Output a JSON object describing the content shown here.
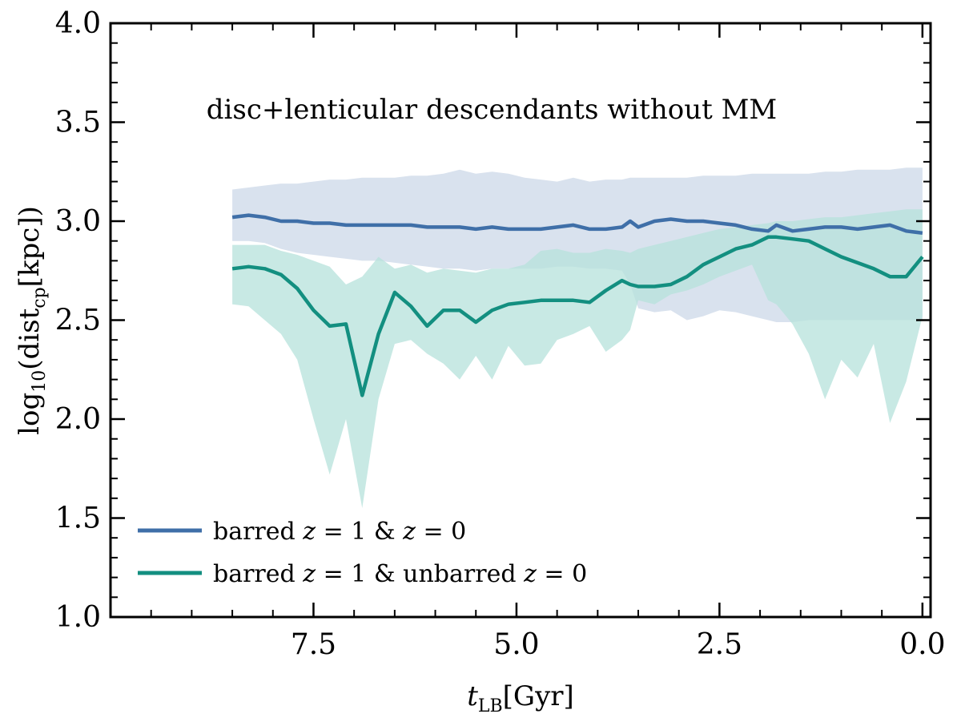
{
  "chart_data": {
    "type": "line",
    "title": "",
    "annotation": "disc+lenticular descendants without MM",
    "xlabel": "t_LB[Gyr]",
    "ylabel": "log10(dist_cp[kpc])",
    "xlim": [
      10.0,
      -0.1
    ],
    "ylim": [
      1.0,
      4.0
    ],
    "xticks": [
      7.5,
      5.0,
      2.5,
      0.0
    ],
    "xtick_labels": [
      "7.5",
      "5.0",
      "2.5",
      "0.0"
    ],
    "yticks": [
      1.0,
      1.5,
      2.0,
      2.5,
      3.0,
      3.5,
      4.0
    ],
    "ytick_labels": [
      "1.0",
      "1.5",
      "2.0",
      "2.5",
      "3.0",
      "3.5",
      "4.0"
    ],
    "grid": false,
    "legend_position": "lower-left",
    "series": [
      {
        "name": "barred z = 1 & z = 0",
        "legend_label": "barred z = 1 & z = 0",
        "color": "#3f6fa8",
        "band_color": "#d9e2ee",
        "x": [
          8.5,
          8.3,
          8.1,
          7.9,
          7.7,
          7.5,
          7.3,
          7.1,
          6.9,
          6.7,
          6.5,
          6.3,
          6.1,
          5.9,
          5.7,
          5.5,
          5.3,
          5.1,
          4.9,
          4.7,
          4.5,
          4.3,
          4.1,
          3.9,
          3.7,
          3.6,
          3.5,
          3.3,
          3.1,
          2.9,
          2.7,
          2.5,
          2.3,
          2.1,
          1.9,
          1.8,
          1.6,
          1.4,
          1.2,
          1.0,
          0.8,
          0.6,
          0.4,
          0.2,
          0.0
        ],
        "values": [
          3.02,
          3.03,
          3.02,
          3.0,
          3.0,
          2.99,
          2.99,
          2.98,
          2.98,
          2.98,
          2.98,
          2.98,
          2.97,
          2.97,
          2.97,
          2.96,
          2.97,
          2.96,
          2.96,
          2.96,
          2.97,
          2.98,
          2.96,
          2.96,
          2.97,
          3.0,
          2.97,
          3.0,
          3.01,
          3.0,
          3.0,
          2.99,
          2.98,
          2.96,
          2.95,
          2.98,
          2.95,
          2.96,
          2.97,
          2.97,
          2.96,
          2.97,
          2.98,
          2.95,
          2.94
        ],
        "lower": [
          2.9,
          2.9,
          2.89,
          2.86,
          2.84,
          2.83,
          2.82,
          2.81,
          2.8,
          2.8,
          2.79,
          2.78,
          2.77,
          2.76,
          2.76,
          2.75,
          2.76,
          2.76,
          2.76,
          2.76,
          2.77,
          2.77,
          2.76,
          2.76,
          2.75,
          2.68,
          2.56,
          2.54,
          2.55,
          2.5,
          2.52,
          2.55,
          2.54,
          2.52,
          2.5,
          2.49,
          2.49,
          2.5,
          2.5,
          2.5,
          2.5,
          2.5,
          2.5,
          2.5,
          2.5
        ],
        "upper": [
          3.16,
          3.17,
          3.18,
          3.19,
          3.19,
          3.2,
          3.21,
          3.21,
          3.22,
          3.22,
          3.22,
          3.23,
          3.23,
          3.24,
          3.26,
          3.24,
          3.25,
          3.24,
          3.22,
          3.21,
          3.2,
          3.22,
          3.2,
          3.21,
          3.21,
          3.22,
          3.22,
          3.22,
          3.22,
          3.22,
          3.23,
          3.23,
          3.23,
          3.24,
          3.24,
          3.24,
          3.24,
          3.24,
          3.25,
          3.25,
          3.26,
          3.26,
          3.26,
          3.27,
          3.27
        ]
      },
      {
        "name": "barred z = 1 & unbarred z = 0",
        "legend_label": "barred z = 1 & unbarred z = 0",
        "color": "#138f80",
        "band_color": "#b6e2db",
        "x": [
          8.5,
          8.3,
          8.1,
          7.9,
          7.7,
          7.5,
          7.3,
          7.1,
          6.9,
          6.7,
          6.5,
          6.3,
          6.1,
          5.9,
          5.7,
          5.5,
          5.3,
          5.1,
          4.9,
          4.7,
          4.5,
          4.3,
          4.1,
          3.9,
          3.7,
          3.6,
          3.5,
          3.3,
          3.1,
          2.9,
          2.7,
          2.5,
          2.3,
          2.1,
          1.9,
          1.8,
          1.6,
          1.4,
          1.2,
          1.0,
          0.8,
          0.6,
          0.4,
          0.2,
          0.0
        ],
        "values": [
          2.76,
          2.77,
          2.76,
          2.73,
          2.66,
          2.55,
          2.47,
          2.48,
          2.12,
          2.43,
          2.64,
          2.57,
          2.47,
          2.55,
          2.55,
          2.49,
          2.55,
          2.58,
          2.59,
          2.6,
          2.6,
          2.6,
          2.59,
          2.65,
          2.7,
          2.68,
          2.67,
          2.67,
          2.68,
          2.72,
          2.78,
          2.82,
          2.86,
          2.88,
          2.92,
          2.92,
          2.91,
          2.9,
          2.86,
          2.82,
          2.79,
          2.76,
          2.72,
          2.72,
          2.82
        ],
        "lower": [
          2.58,
          2.57,
          2.5,
          2.43,
          2.3,
          2.0,
          1.72,
          2.0,
          1.55,
          2.1,
          2.38,
          2.4,
          2.33,
          2.28,
          2.2,
          2.32,
          2.2,
          2.37,
          2.27,
          2.28,
          2.4,
          2.43,
          2.47,
          2.34,
          2.4,
          2.45,
          2.6,
          2.58,
          2.63,
          2.65,
          2.68,
          2.72,
          2.75,
          2.78,
          2.6,
          2.58,
          2.48,
          2.33,
          2.1,
          2.3,
          2.21,
          2.38,
          1.98,
          2.19,
          2.52
        ],
        "upper": [
          2.88,
          2.88,
          2.88,
          2.85,
          2.83,
          2.8,
          2.77,
          2.68,
          2.72,
          2.82,
          2.76,
          2.78,
          2.74,
          2.76,
          2.75,
          2.74,
          2.76,
          2.76,
          2.78,
          2.85,
          2.86,
          2.84,
          2.84,
          2.86,
          2.85,
          2.84,
          2.86,
          2.88,
          2.9,
          2.92,
          2.94,
          2.96,
          2.97,
          2.98,
          2.99,
          3.0,
          3.0,
          3.01,
          3.02,
          3.02,
          3.03,
          3.04,
          3.05,
          3.06,
          3.06
        ]
      }
    ]
  }
}
